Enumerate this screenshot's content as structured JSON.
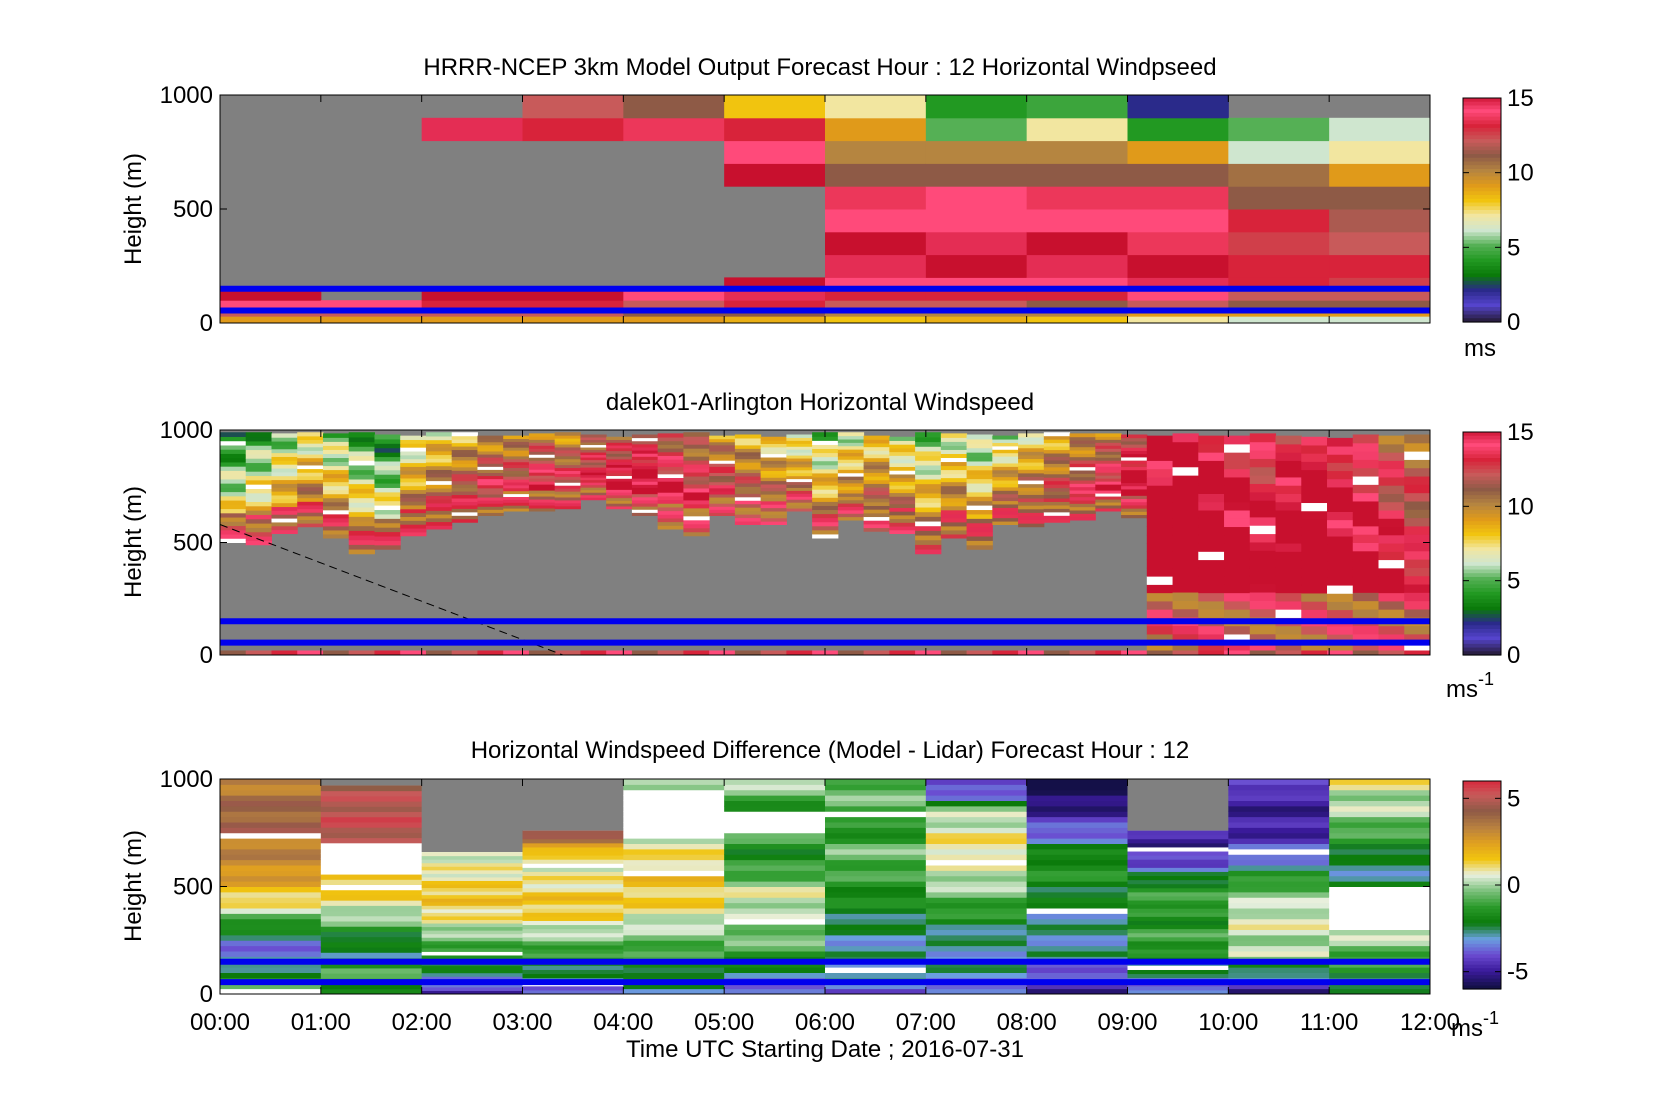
{
  "colors": {
    "no_data": "#808080",
    "marker_line": "#0000ee",
    "speed_colormap": [
      "#2a1f44",
      "#5544cc",
      "#2a2a8a",
      "#0a7a0a",
      "#229922",
      "#55b055",
      "#cfe6cf",
      "#f2e6a0",
      "#f1c40f",
      "#e09a1a",
      "#b58540",
      "#8e5a46",
      "#c85a5a",
      "#d8233a",
      "#ff4a7a",
      "#c8102e"
    ],
    "diff_colormap": [
      "#141048",
      "#3a1a9a",
      "#6a4ad0",
      "#6aa0e0",
      "#0a7a0a",
      "#2a9a2a",
      "#7ac07a",
      "#e8f0e0",
      "#f1c40f",
      "#e0a020",
      "#b88040",
      "#8e5a46",
      "#c85a5a",
      "#d8233a"
    ]
  },
  "x_axis": {
    "label": "Time UTC  Starting Date ; 2016-07-31",
    "ticks": [
      "00:00",
      "01:00",
      "02:00",
      "03:00",
      "04:00",
      "05:00",
      "06:00",
      "07:00",
      "08:00",
      "09:00",
      "10:00",
      "11:00",
      "12:00"
    ]
  },
  "chart_data": [
    {
      "type": "heatmap",
      "title": "HRRR-NCEP 3km Model Output   Forecast Hour : 12 Horizontal Windpseed",
      "ylabel": "Height (m)",
      "y_ticks": [
        "1000",
        "500",
        "0"
      ],
      "ylim": [
        0,
        1000
      ],
      "xlim_hours": [
        0,
        12
      ],
      "colorbar": {
        "ticks": [
          "15",
          "10",
          "5",
          "0"
        ],
        "range": [
          0,
          15
        ],
        "unit": "ms"
      },
      "time_hours": [
        0,
        1,
        2,
        3,
        4,
        5,
        6,
        7,
        8,
        9,
        10,
        11
      ],
      "height_levels_m": [
        0,
        30,
        60,
        100,
        150,
        200,
        300,
        400,
        500,
        600,
        700,
        800,
        900,
        1000
      ],
      "marker_heights_m": [
        55,
        150
      ],
      "speed_matrix_by_hour": [
        [
          9,
          12,
          14,
          15,
          null,
          null,
          null,
          null,
          null,
          null,
          null,
          null,
          null
        ],
        [
          9,
          12,
          14,
          null,
          null,
          null,
          null,
          null,
          null,
          null,
          null,
          null,
          null
        ],
        [
          9,
          12,
          13,
          15,
          null,
          null,
          null,
          null,
          null,
          null,
          null,
          14.5
        ],
        [
          9,
          12,
          13,
          15,
          null,
          null,
          null,
          null,
          null,
          null,
          null,
          13,
          12
        ],
        [
          9,
          11,
          12,
          14,
          null,
          null,
          null,
          null,
          null,
          null,
          null,
          13.5,
          11
        ],
        [
          8.5,
          11,
          13,
          14.5,
          15,
          null,
          null,
          null,
          null,
          15,
          14,
          13,
          8
        ],
        [
          8,
          10,
          12,
          13,
          14,
          14.5,
          15,
          14,
          13.5,
          11,
          10,
          9,
          7
        ],
        [
          8.5,
          10,
          12,
          13,
          14,
          15,
          14.5,
          14,
          14,
          11,
          10,
          5,
          4
        ],
        [
          8,
          10,
          11,
          13,
          14,
          14.5,
          15,
          14,
          13.5,
          11,
          10,
          7,
          4.5
        ],
        [
          7,
          9,
          12,
          14,
          14.5,
          15,
          13.5,
          14,
          13.5,
          11,
          9,
          4,
          2
        ],
        [
          6,
          9,
          11,
          12,
          13,
          13,
          12.5,
          13,
          11,
          10.5,
          6,
          5
        ],
        [
          6,
          9,
          11,
          12,
          12.5,
          13,
          12,
          11.5,
          11,
          9,
          7,
          6
        ]
      ]
    },
    {
      "type": "heatmap",
      "title": "dalek01-Arlington  Horizontal Windspeed",
      "ylabel": "Height (m)",
      "y_ticks": [
        "1000",
        "500",
        "0"
      ],
      "ylim": [
        0,
        1000
      ],
      "xlim_hours": [
        0,
        12
      ],
      "colorbar": {
        "ticks": [
          "15",
          "10",
          "5",
          "0"
        ],
        "range": [
          0,
          15
        ],
        "unit": "ms",
        "unit_exponent": "-1"
      },
      "data_top_m": [
        990,
        990,
        985,
        990,
        985,
        990,
        980,
        975,
        990,
        990,
        975,
        975,
        985,
        990,
        980,
        970,
        980,
        985,
        990,
        975,
        980,
        970,
        980,
        990,
        990,
        975,
        970,
        990,
        985,
        980,
        975,
        985,
        990,
        985,
        985,
        980,
        975,
        985,
        975,
        975,
        985,
        975,
        970,
        965,
        980,
        975,
        980
      ],
      "data_bottom_m": [
        500,
        490,
        540,
        570,
        520,
        450,
        470,
        530,
        560,
        590,
        620,
        640,
        640,
        650,
        690,
        650,
        620,
        560,
        530,
        620,
        580,
        580,
        640,
        520,
        600,
        550,
        540,
        450,
        520,
        470,
        580,
        570,
        590,
        600,
        640,
        610,
        20,
        20,
        20,
        20,
        20,
        20,
        20,
        20,
        20,
        20,
        20
      ],
      "low_speed_profile": [
        3,
        4,
        5,
        6,
        5,
        4,
        3,
        6,
        7,
        8,
        9,
        9,
        10,
        9,
        10,
        11,
        12,
        11,
        10,
        9,
        8,
        7,
        6,
        5,
        6,
        7,
        6,
        5,
        6,
        5,
        6,
        7,
        8,
        9,
        10,
        12,
        14,
        15,
        14,
        13,
        12,
        13,
        14,
        13,
        12,
        11,
        10
      ],
      "dashed_line_points": [
        [
          0,
          580
        ],
        [
          3.4,
          0
        ]
      ],
      "marker_heights_m": [
        55,
        150
      ]
    },
    {
      "type": "heatmap",
      "title": "Horizontal Windspeed Difference (Model - Lidar) Forecast Hour : 12",
      "ylabel": "Height (m)",
      "y_ticks": [
        "1000",
        "500",
        "0"
      ],
      "ylim": [
        0,
        1000
      ],
      "xlim_hours": [
        0,
        12
      ],
      "colorbar": {
        "ticks": [
          "5",
          "0",
          "-5"
        ],
        "range": [
          -6,
          6
        ],
        "unit": "ms",
        "unit_exponent": "-1"
      },
      "time_hours": [
        0,
        1,
        2,
        3,
        4,
        5,
        6,
        7,
        8,
        9,
        10,
        11
      ],
      "top_m": [
        1000,
        970,
        660,
        760,
        1000,
        1000,
        1000,
        1000,
        1000,
        760,
        1000,
        1000
      ],
      "white_blank_m": [
        null,
        [
          550,
          720
        ],
        null,
        null,
        [
          720,
          960
        ],
        [
          740,
          860
        ],
        null,
        null,
        null,
        null,
        null,
        [
          280,
          500
        ]
      ],
      "profiles_diff": [
        [
          -1,
          -2,
          -4,
          -3,
          -1,
          1,
          2,
          3,
          3,
          4,
          4,
          3.5,
          3
        ],
        [
          -2,
          -1,
          -3,
          -2,
          0,
          1,
          1.5,
          1,
          5,
          5,
          5,
          4
        ],
        [
          -5,
          -3,
          -2,
          -1,
          0,
          1,
          1.5,
          1,
          0.5,
          0.5
        ],
        [
          -4,
          -3,
          -2,
          -1,
          0,
          1,
          1.5,
          1,
          0.5,
          0.5,
          3,
          5
        ],
        [
          -3,
          -2,
          -1,
          0,
          1,
          1.5,
          1,
          0.5,
          0.5,
          0.5,
          0
        ],
        [
          -4,
          -3,
          -1,
          -0.5,
          0,
          0.5,
          -1,
          -2,
          -1,
          -3,
          -0.5,
          0
        ],
        [
          -4,
          -3,
          -3,
          -3,
          -2.5,
          -2,
          -1.5,
          -1,
          -0.5,
          -2,
          -1,
          -0.5,
          -1
        ],
        [
          -4,
          -3,
          -3,
          -3,
          -2,
          -1,
          0,
          0.5,
          1,
          0.5,
          0,
          -4,
          -5
        ],
        [
          -5,
          -4,
          -3,
          -3,
          -3,
          -2.5,
          -2,
          -1.5,
          -2.5,
          -4,
          -5,
          -6,
          -6
        ],
        [
          -4,
          -3,
          -2,
          -1,
          -2,
          -1,
          -2,
          -4,
          -5,
          -5
        ],
        [
          -5,
          -3,
          0,
          0,
          0.5,
          0,
          -1,
          -3,
          -4,
          -5,
          -5,
          -5,
          -3
        ],
        [
          -3,
          -2,
          -1,
          0,
          0,
          -2,
          -2.5,
          -3,
          -2,
          -1,
          0,
          0,
          1
        ]
      ],
      "marker_heights_m": [
        55,
        150
      ]
    }
  ]
}
